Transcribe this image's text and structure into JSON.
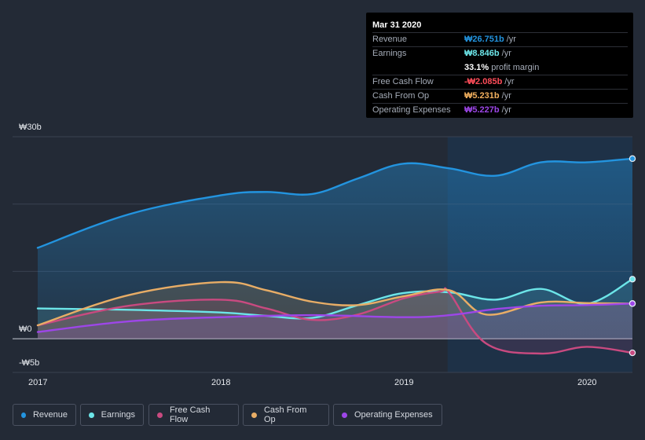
{
  "tooltip": {
    "date": "Mar 31 2020",
    "revenue": {
      "label": "Revenue",
      "value": "₩26.751b",
      "unit": "/yr",
      "color": "#2394df"
    },
    "earnings": {
      "label": "Earnings",
      "value": "₩8.846b",
      "unit": "/yr",
      "color": "#6ce5e8"
    },
    "margin": {
      "value": "33.1%",
      "unit": "profit margin"
    },
    "fcf": {
      "label": "Free Cash Flow",
      "value": "-₩2.085b",
      "unit": "/yr",
      "color": "#ff4d5a"
    },
    "cfo": {
      "label": "Cash From Op",
      "value": "₩5.231b",
      "unit": "/yr",
      "color": "#f2b05e"
    },
    "opex": {
      "label": "Operating Expenses",
      "value": "₩5.227b",
      "unit": "/yr",
      "color": "#9d46e8"
    }
  },
  "legend": [
    {
      "label": "Revenue",
      "color": "#2394df"
    },
    {
      "label": "Earnings",
      "color": "#6ce5e8"
    },
    {
      "label": "Free Cash Flow",
      "color": "#c94a80"
    },
    {
      "label": "Cash From Op",
      "color": "#e8ad66"
    },
    {
      "label": "Operating Expenses",
      "color": "#9d46e8"
    }
  ],
  "chart_data": {
    "type": "area",
    "title": "",
    "ylabel": "",
    "xlabel": "",
    "ylim": [
      -5,
      30
    ],
    "xlim": [
      2017.0,
      2020.25
    ],
    "y_tick_labels": [
      {
        "value": 30,
        "label": "₩30b"
      },
      {
        "value": 0,
        "label": "₩0"
      },
      {
        "value": -5,
        "label": "-₩5b"
      }
    ],
    "x_tick_labels": [
      {
        "value": 2017,
        "label": "2017"
      },
      {
        "value": 2018,
        "label": "2018"
      },
      {
        "value": 2019,
        "label": "2019"
      },
      {
        "value": 2020,
        "label": "2020"
      }
    ],
    "highlight_from": 2019.24,
    "series": [
      {
        "name": "Revenue",
        "color": "#2394df",
        "points": [
          [
            2017.0,
            13.5
          ],
          [
            2017.5,
            18.5
          ],
          [
            2018.0,
            21.3
          ],
          [
            2018.25,
            21.8
          ],
          [
            2018.5,
            21.5
          ],
          [
            2018.75,
            23.8
          ],
          [
            2019.0,
            26.0
          ],
          [
            2019.25,
            25.3
          ],
          [
            2019.5,
            24.2
          ],
          [
            2019.75,
            26.2
          ],
          [
            2020.0,
            26.2
          ],
          [
            2020.25,
            26.75
          ]
        ]
      },
      {
        "name": "Earnings",
        "color": "#6ce5e8",
        "points": [
          [
            2017.0,
            4.5
          ],
          [
            2017.5,
            4.3
          ],
          [
            2018.0,
            3.9
          ],
          [
            2018.25,
            3.4
          ],
          [
            2018.5,
            3.1
          ],
          [
            2018.75,
            5.0
          ],
          [
            2019.0,
            6.8
          ],
          [
            2019.25,
            6.9
          ],
          [
            2019.5,
            5.8
          ],
          [
            2019.75,
            7.4
          ],
          [
            2020.0,
            5.2
          ],
          [
            2020.25,
            8.85
          ]
        ]
      },
      {
        "name": "Free Cash Flow",
        "color": "#c94a80",
        "points": [
          [
            2017.0,
            2.0
          ],
          [
            2017.5,
            4.9
          ],
          [
            2018.0,
            5.8
          ],
          [
            2018.25,
            4.5
          ],
          [
            2018.5,
            2.8
          ],
          [
            2018.75,
            3.6
          ],
          [
            2019.0,
            6.0
          ],
          [
            2019.2,
            7.0
          ],
          [
            2019.25,
            6.8
          ],
          [
            2019.45,
            -0.7
          ],
          [
            2019.75,
            -2.2
          ],
          [
            2020.0,
            -1.2
          ],
          [
            2020.25,
            -2.09
          ]
        ]
      },
      {
        "name": "Cash From Op",
        "color": "#e8ad66",
        "points": [
          [
            2017.0,
            2.0
          ],
          [
            2017.5,
            6.5
          ],
          [
            2018.0,
            8.4
          ],
          [
            2018.25,
            7.2
          ],
          [
            2018.5,
            5.5
          ],
          [
            2018.75,
            5.0
          ],
          [
            2019.0,
            6.3
          ],
          [
            2019.25,
            7.2
          ],
          [
            2019.45,
            3.6
          ],
          [
            2019.75,
            5.4
          ],
          [
            2020.0,
            5.3
          ],
          [
            2020.25,
            5.23
          ]
        ]
      },
      {
        "name": "Operating Expenses",
        "color": "#9d46e8",
        "points": [
          [
            2017.0,
            1.0
          ],
          [
            2017.5,
            2.6
          ],
          [
            2018.0,
            3.2
          ],
          [
            2018.5,
            3.5
          ],
          [
            2019.0,
            3.2
          ],
          [
            2019.25,
            3.5
          ],
          [
            2019.5,
            4.4
          ],
          [
            2019.75,
            4.9
          ],
          [
            2020.0,
            5.0
          ],
          [
            2020.25,
            5.23
          ]
        ]
      }
    ]
  }
}
